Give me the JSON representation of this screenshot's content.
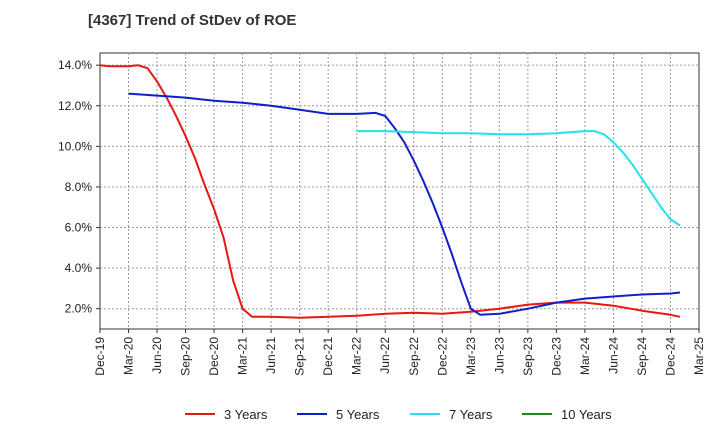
{
  "chart_data": {
    "type": "line",
    "title": "[4367]  Trend of StDev of ROE",
    "xlabel": "",
    "ylabel": "",
    "x_tick_labels": [
      "Dec-19",
      "Mar-20",
      "Jun-20",
      "Sep-20",
      "Dec-20",
      "Mar-21",
      "Jun-21",
      "Sep-21",
      "Dec-21",
      "Mar-22",
      "Jun-22",
      "Sep-22",
      "Dec-22",
      "Mar-23",
      "Jun-23",
      "Sep-23",
      "Dec-23",
      "Mar-24",
      "Jun-24",
      "Sep-24",
      "Dec-24",
      "Mar-25"
    ],
    "y_tick_labels": [
      "2.0%",
      "4.0%",
      "6.0%",
      "8.0%",
      "10.0%",
      "12.0%",
      "14.0%"
    ],
    "y_ticks": [
      2,
      4,
      6,
      8,
      10,
      12,
      14
    ],
    "ylim": [
      1,
      14.6
    ],
    "grid": true,
    "legend_position": "bottom",
    "series": [
      {
        "name": "3 Years",
        "color": "#e8180e",
        "points": [
          [
            "Dec-19",
            14.0
          ],
          [
            "Jan-20",
            13.95
          ],
          [
            "Feb-20",
            13.95
          ],
          [
            "Mar-20",
            13.95
          ],
          [
            "Apr-20",
            14.0
          ],
          [
            "May-20",
            13.85
          ],
          [
            "Jun-20",
            13.2
          ],
          [
            "Jul-20",
            12.4
          ],
          [
            "Aug-20",
            11.5
          ],
          [
            "Sep-20",
            10.5
          ],
          [
            "Oct-20",
            9.4
          ],
          [
            "Nov-20",
            8.1
          ],
          [
            "Dec-20",
            6.9
          ],
          [
            "Jan-21",
            5.5
          ],
          [
            "Feb-21",
            3.4
          ],
          [
            "Mar-21",
            2.0
          ],
          [
            "Apr-21",
            1.6
          ],
          [
            "Jun-21",
            1.6
          ],
          [
            "Sep-21",
            1.55
          ],
          [
            "Dec-21",
            1.6
          ],
          [
            "Mar-22",
            1.65
          ],
          [
            "Jun-22",
            1.75
          ],
          [
            "Sep-22",
            1.8
          ],
          [
            "Dec-22",
            1.75
          ],
          [
            "Mar-23",
            1.85
          ],
          [
            "Jun-23",
            2.0
          ],
          [
            "Sep-23",
            2.2
          ],
          [
            "Dec-23",
            2.3
          ],
          [
            "Mar-24",
            2.3
          ],
          [
            "Jun-24",
            2.15
          ],
          [
            "Sep-24",
            1.9
          ],
          [
            "Dec-24",
            1.7
          ],
          [
            "Jan-25",
            1.6
          ]
        ]
      },
      {
        "name": "5 Years",
        "color": "#1020c8",
        "points": [
          [
            "Mar-20",
            12.6
          ],
          [
            "Jun-20",
            12.5
          ],
          [
            "Sep-20",
            12.4
          ],
          [
            "Dec-20",
            12.25
          ],
          [
            "Mar-21",
            12.15
          ],
          [
            "Jun-21",
            12.0
          ],
          [
            "Sep-21",
            11.8
          ],
          [
            "Dec-21",
            11.6
          ],
          [
            "Mar-22",
            11.6
          ],
          [
            "May-22",
            11.65
          ],
          [
            "Jun-22",
            11.5
          ],
          [
            "Jul-22",
            10.9
          ],
          [
            "Aug-22",
            10.2
          ],
          [
            "Sep-22",
            9.3
          ],
          [
            "Oct-22",
            8.3
          ],
          [
            "Nov-22",
            7.2
          ],
          [
            "Dec-22",
            6.0
          ],
          [
            "Jan-23",
            4.7
          ],
          [
            "Feb-23",
            3.3
          ],
          [
            "Mar-23",
            2.0
          ],
          [
            "Apr-23",
            1.7
          ],
          [
            "Jun-23",
            1.75
          ],
          [
            "Sep-23",
            2.0
          ],
          [
            "Dec-23",
            2.3
          ],
          [
            "Mar-24",
            2.5
          ],
          [
            "Jun-24",
            2.6
          ],
          [
            "Sep-24",
            2.7
          ],
          [
            "Dec-24",
            2.75
          ],
          [
            "Jan-25",
            2.8
          ]
        ]
      },
      {
        "name": "7 Years",
        "color": "#22e0ee",
        "points": [
          [
            "Mar-22",
            10.75
          ],
          [
            "Jun-22",
            10.75
          ],
          [
            "Sep-22",
            10.7
          ],
          [
            "Dec-22",
            10.65
          ],
          [
            "Mar-23",
            10.65
          ],
          [
            "Jun-23",
            10.6
          ],
          [
            "Sep-23",
            10.6
          ],
          [
            "Dec-23",
            10.65
          ],
          [
            "Mar-24",
            10.75
          ],
          [
            "Apr-24",
            10.75
          ],
          [
            "May-24",
            10.6
          ],
          [
            "Jun-24",
            10.2
          ],
          [
            "Jul-24",
            9.7
          ],
          [
            "Aug-24",
            9.1
          ],
          [
            "Sep-24",
            8.4
          ],
          [
            "Oct-24",
            7.7
          ],
          [
            "Nov-24",
            7.0
          ],
          [
            "Dec-24",
            6.4
          ],
          [
            "Jan-25",
            6.1
          ]
        ]
      },
      {
        "name": "10 Years",
        "color": "#1a8a1a",
        "points": []
      }
    ]
  }
}
